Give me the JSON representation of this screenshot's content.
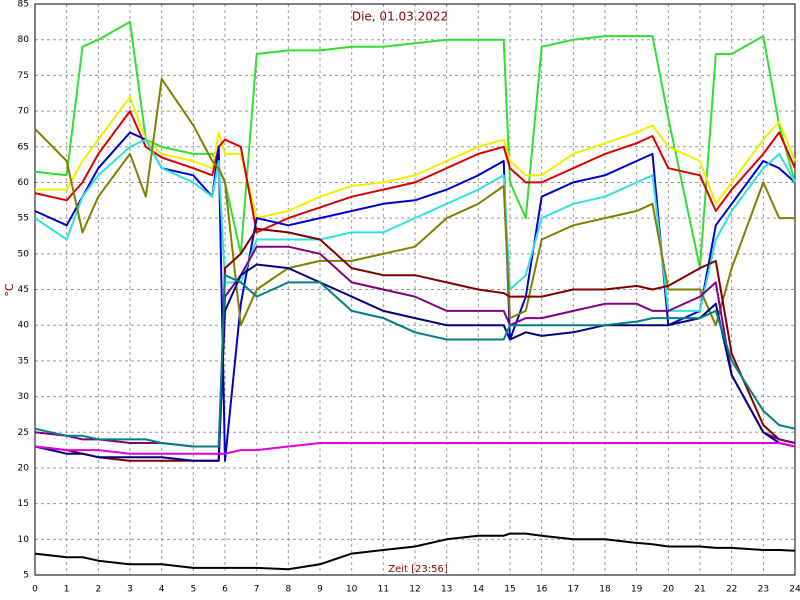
{
  "chart_data": {
    "type": "line",
    "title": "Die, 01.03.2022",
    "y_label": "°C",
    "annotation": "Zeit [23:56]",
    "x": [
      0,
      1,
      1.5,
      2,
      3,
      3.5,
      4,
      5,
      5.6,
      5.8,
      6,
      6.5,
      7,
      8,
      9,
      10,
      11,
      12,
      13,
      14,
      14.8,
      15,
      15.5,
      16,
      17,
      18,
      19,
      19.5,
      20,
      21,
      21.5,
      22,
      23,
      23.5,
      24
    ],
    "xlim": [
      0,
      24
    ],
    "ylim": [
      5,
      85
    ],
    "xticks": [
      0,
      1,
      2,
      3,
      4,
      5,
      6,
      7,
      8,
      9,
      10,
      11,
      12,
      13,
      14,
      15,
      16,
      17,
      18,
      19,
      20,
      21,
      22,
      23,
      24
    ],
    "yticks": [
      5,
      10,
      15,
      20,
      25,
      30,
      35,
      40,
      45,
      50,
      55,
      60,
      65,
      70,
      75,
      80,
      85
    ],
    "grid": true,
    "series": [
      {
        "color": "#33dd33",
        "values": [
          61.5,
          61,
          79,
          80,
          82.5,
          66,
          65,
          64,
          64,
          62,
          60,
          50,
          78,
          78.5,
          78.5,
          79,
          79,
          79.5,
          80,
          80,
          80,
          60,
          55,
          79,
          80,
          80.5,
          80.5,
          80.5,
          69,
          48,
          78,
          78,
          80.5,
          68,
          60
        ]
      },
      {
        "color": "#f0f000",
        "values": [
          59,
          59,
          63,
          66,
          72,
          66,
          64,
          63,
          62,
          67,
          64,
          64,
          55,
          56,
          58,
          59.5,
          60,
          61,
          63,
          65,
          66,
          63,
          61,
          61,
          64,
          65.5,
          67,
          68,
          65,
          63,
          57,
          60,
          66,
          68.5,
          63
        ]
      },
      {
        "color": "#dd0000",
        "values": [
          58.5,
          57.5,
          60,
          64,
          70,
          65,
          63.5,
          62,
          61,
          65,
          66,
          65,
          53,
          55,
          56.5,
          58,
          59,
          60,
          62,
          64,
          65,
          62,
          60,
          60,
          62,
          64,
          65.5,
          66.5,
          62,
          61,
          56,
          59,
          64,
          67,
          62
        ]
      },
      {
        "color": "#0000cc",
        "values": [
          56,
          54,
          58,
          62,
          67,
          66,
          62,
          61,
          58,
          65,
          21,
          43,
          55,
          54,
          55,
          56,
          57,
          57.5,
          59,
          61,
          63,
          38,
          44,
          58,
          60,
          61,
          63,
          64,
          40,
          42,
          54,
          57,
          63,
          62,
          60
        ]
      },
      {
        "color": "#33e0e0",
        "values": [
          55,
          52,
          58,
          61,
          65,
          66,
          62,
          60,
          58,
          63,
          46,
          46,
          52,
          52,
          52,
          53,
          53,
          55,
          57,
          59,
          61,
          45,
          47,
          55,
          57,
          58,
          60,
          61,
          42,
          42,
          52,
          56,
          62,
          64,
          60
        ]
      },
      {
        "color": "#808000",
        "values": [
          67.5,
          63,
          53,
          58,
          64,
          58,
          74.5,
          68,
          63,
          62,
          60,
          40,
          45,
          48,
          49,
          49,
          50,
          51,
          55,
          57,
          59.5,
          41,
          42,
          52,
          54,
          55,
          56,
          57,
          45,
          45,
          40,
          48,
          60,
          55,
          55
        ]
      },
      {
        "color": "#800000",
        "values": [
          23,
          22.5,
          22,
          21.5,
          21,
          21,
          21,
          21,
          21,
          21,
          48,
          50,
          53.5,
          53,
          52,
          48,
          47,
          47,
          46,
          45,
          44.5,
          44,
          44,
          44,
          45,
          45,
          45.5,
          45,
          45.5,
          48,
          49,
          36,
          26,
          24,
          23.5
        ]
      },
      {
        "color": "#800080",
        "values": [
          25,
          24.5,
          24,
          24,
          23.5,
          23.5,
          23.5,
          23,
          23,
          23,
          44,
          47,
          51,
          51,
          50,
          46,
          45,
          44,
          42,
          42,
          42,
          40,
          41,
          41,
          42,
          43,
          43,
          42,
          42,
          44,
          46,
          33,
          25,
          24,
          23.5
        ]
      },
      {
        "color": "#000080",
        "values": [
          23,
          22,
          22,
          21.5,
          21.5,
          21.5,
          21.5,
          21,
          21,
          21,
          42,
          47,
          48.5,
          48,
          46,
          44,
          42,
          41,
          40,
          40,
          40,
          38,
          39,
          38.5,
          39,
          40,
          40,
          40,
          40,
          41,
          43,
          33,
          25,
          23.5,
          23
        ]
      },
      {
        "color": "#008080",
        "values": [
          25.5,
          24.5,
          24.5,
          24,
          24,
          24,
          23.5,
          23,
          23,
          23,
          47,
          46,
          44,
          46,
          46,
          42,
          41,
          39,
          38,
          38,
          38,
          40,
          40,
          40,
          40,
          40,
          40.5,
          41,
          41,
          41,
          42,
          35,
          28,
          26,
          25.5
        ]
      },
      {
        "color": "#e000e0",
        "values": [
          23,
          22.5,
          22.5,
          22.5,
          22,
          22,
          22,
          22,
          22,
          22,
          22,
          22.5,
          22.5,
          23,
          23.5,
          23.5,
          23.5,
          23.5,
          23.5,
          23.5,
          23.5,
          23.5,
          23.5,
          23.5,
          23.5,
          23.5,
          23.5,
          23.5,
          23.5,
          23.5,
          23.5,
          23.5,
          23.5,
          23.5,
          23
        ]
      },
      {
        "color": "#000000",
        "values": [
          8,
          7.5,
          7.5,
          7,
          6.5,
          6.5,
          6.5,
          6,
          6,
          6,
          6,
          6,
          6,
          5.8,
          6.5,
          8,
          8.5,
          9,
          10,
          10.5,
          10.5,
          10.8,
          10.8,
          10.5,
          10,
          10,
          9.5,
          9.3,
          9,
          9,
          8.8,
          8.8,
          8.5,
          8.5,
          8.4
        ]
      }
    ]
  }
}
